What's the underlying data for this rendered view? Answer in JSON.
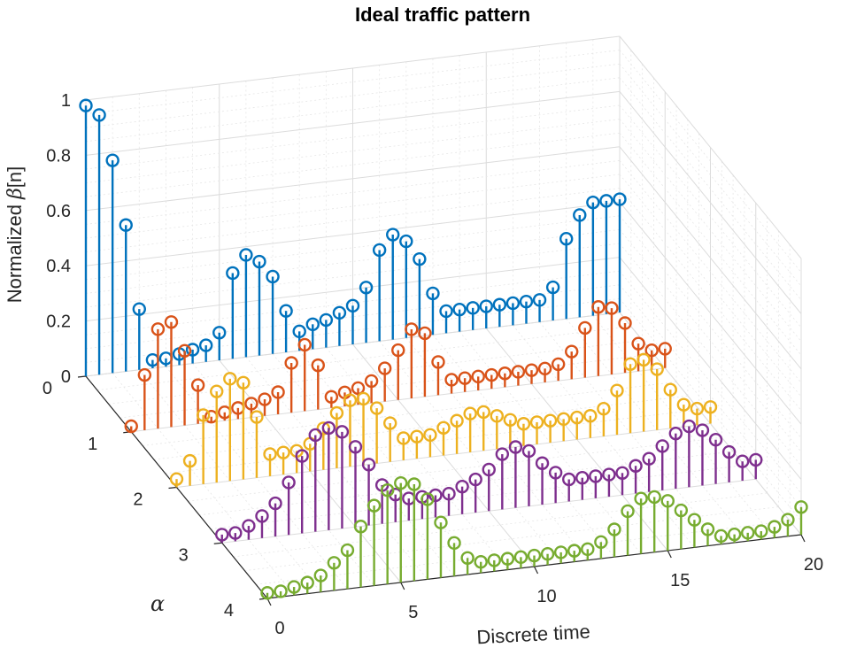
{
  "chart_data": {
    "type": "stem3",
    "title": "Ideal traffic pattern",
    "xlabel": "Discrete time",
    "ylabel": "α",
    "zlabel_prefix": "Normalized ",
    "zlabel_symbol": "β",
    "zlabel_suffix": "[n]",
    "xlim": [
      0,
      20
    ],
    "ylim": [
      0,
      4
    ],
    "zlim": [
      0,
      1
    ],
    "x_ticks": [
      0,
      5,
      10,
      15,
      20
    ],
    "x_tick_labels": [
      "0",
      "5",
      "10",
      "15",
      "20"
    ],
    "y_ticks": [
      0,
      1,
      2,
      3,
      4
    ],
    "y_tick_labels": [
      "0",
      "1",
      "2",
      "3",
      "4"
    ],
    "z_ticks": [
      0,
      0.2,
      0.4,
      0.6,
      0.8,
      1
    ],
    "z_tick_labels": [
      "0",
      "0.2",
      "0.4",
      "0.6",
      "0.8",
      "1"
    ],
    "grid": true,
    "x": [
      0,
      0.5,
      1,
      1.5,
      2,
      2.5,
      3,
      3.5,
      4,
      4.5,
      5,
      5.5,
      6,
      6.5,
      7,
      7.5,
      8,
      8.5,
      9,
      9.5,
      10,
      10.5,
      11,
      11.5,
      12,
      12.5,
      13,
      13.5,
      14,
      14.5,
      15,
      15.5,
      16,
      16.5,
      17,
      17.5,
      18,
      18.5,
      19,
      19.5,
      20
    ],
    "series": [
      {
        "name": "alpha = 0",
        "alpha": 0,
        "color": "#0072BD",
        "values": [
          0.98,
          0.94,
          0.77,
          0.53,
          0.22,
          0.03,
          0.03,
          0.04,
          0.05,
          0.06,
          0.1,
          0.31,
          0.37,
          0.34,
          0.28,
          0.15,
          0.07,
          0.09,
          0.1,
          0.12,
          0.14,
          0.2,
          0.33,
          0.38,
          0.35,
          0.28,
          0.15,
          0.08,
          0.08,
          0.08,
          0.08,
          0.08,
          0.08,
          0.08,
          0.08,
          0.12,
          0.29,
          0.37,
          0.41,
          0.41,
          0.41
        ]
      },
      {
        "name": "alpha = 1",
        "alpha": 1,
        "color": "#D95319",
        "values": [
          0.02,
          0.2,
          0.36,
          0.38,
          0.27,
          0.14,
          0.02,
          0.03,
          0.04,
          0.05,
          0.06,
          0.08,
          0.18,
          0.24,
          0.16,
          0.04,
          0.05,
          0.06,
          0.08,
          0.12,
          0.18,
          0.25,
          0.23,
          0.12,
          0.05,
          0.05,
          0.05,
          0.05,
          0.05,
          0.05,
          0.05,
          0.05,
          0.06,
          0.1,
          0.18,
          0.25,
          0.24,
          0.18,
          0.1,
          0.07,
          0.07
        ]
      },
      {
        "name": "alpha = 2",
        "alpha": 2,
        "color": "#EDB120",
        "values": [
          0.03,
          0.09,
          0.25,
          0.33,
          0.37,
          0.35,
          0.22,
          0.08,
          0.08,
          0.08,
          0.1,
          0.15,
          0.2,
          0.24,
          0.24,
          0.2,
          0.14,
          0.08,
          0.08,
          0.08,
          0.1,
          0.12,
          0.14,
          0.14,
          0.12,
          0.1,
          0.08,
          0.08,
          0.08,
          0.08,
          0.08,
          0.08,
          0.1,
          0.16,
          0.25,
          0.26,
          0.22,
          0.14,
          0.08,
          0.06,
          0.06
        ]
      },
      {
        "name": "alpha = 3",
        "alpha": 3,
        "color": "#7E2F8E",
        "values": [
          0.03,
          0.03,
          0.05,
          0.08,
          0.12,
          0.19,
          0.28,
          0.35,
          0.37,
          0.35,
          0.29,
          0.22,
          0.14,
          0.1,
          0.08,
          0.08,
          0.08,
          0.08,
          0.1,
          0.12,
          0.15,
          0.2,
          0.22,
          0.2,
          0.15,
          0.11,
          0.08,
          0.08,
          0.08,
          0.08,
          0.08,
          0.1,
          0.12,
          0.16,
          0.2,
          0.22,
          0.2,
          0.16,
          0.11,
          0.07,
          0.07
        ]
      },
      {
        "name": "alpha = 4",
        "alpha": 4,
        "color": "#77AC30",
        "values": [
          0.02,
          0.02,
          0.03,
          0.04,
          0.06,
          0.1,
          0.14,
          0.22,
          0.29,
          0.34,
          0.36,
          0.35,
          0.29,
          0.2,
          0.12,
          0.06,
          0.04,
          0.04,
          0.04,
          0.04,
          0.04,
          0.04,
          0.04,
          0.04,
          0.04,
          0.06,
          0.1,
          0.16,
          0.2,
          0.2,
          0.18,
          0.14,
          0.1,
          0.06,
          0.03,
          0.03,
          0.03,
          0.03,
          0.04,
          0.06,
          0.1
        ]
      }
    ]
  }
}
